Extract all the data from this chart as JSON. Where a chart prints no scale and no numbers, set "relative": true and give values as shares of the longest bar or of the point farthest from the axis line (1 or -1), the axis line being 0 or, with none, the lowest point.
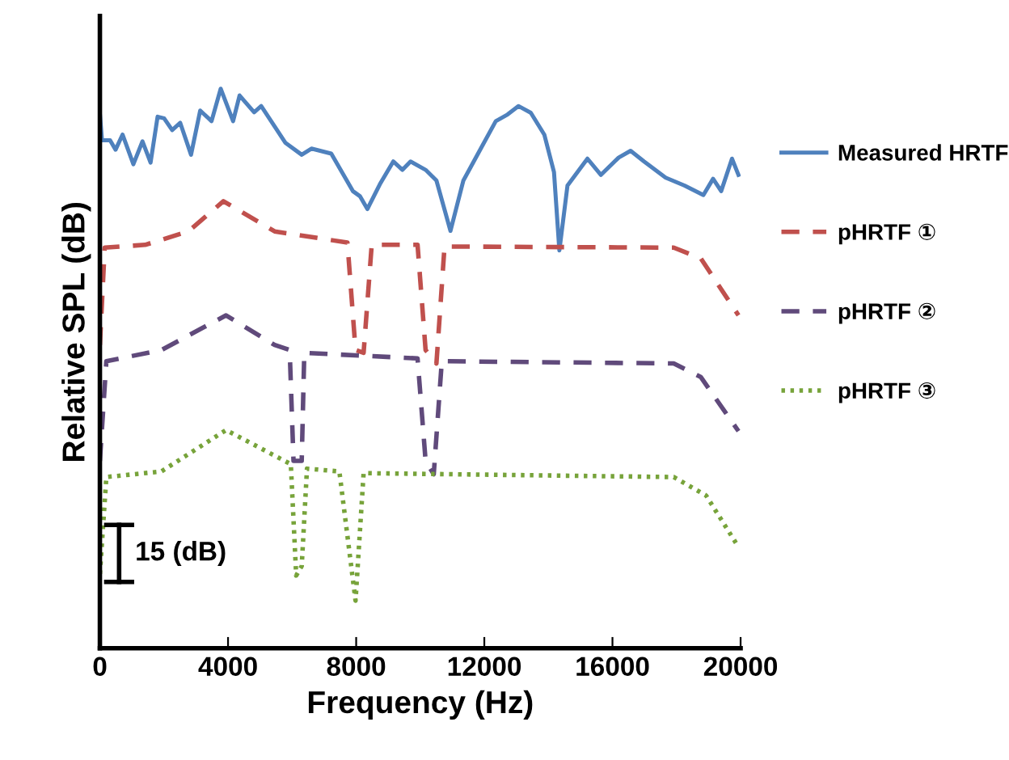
{
  "chart_data": {
    "type": "line",
    "relative": true,
    "xlabel": "Frequency (Hz)",
    "ylabel": "Relative SPL (dB)",
    "xlim": [
      0,
      20000
    ],
    "xticks": [
      0,
      4000,
      8000,
      12000,
      16000,
      20000
    ],
    "tick_labels": "x",
    "grid": false,
    "legend": "right",
    "marker": "none",
    "annotations": [
      "15 (dB)"
    ],
    "series": [
      {
        "name": "Measured HRTF",
        "color": "#4f81bd",
        "line_style": "solid",
        "x": [
          0,
          66,
          318,
          490,
          707,
          1045,
          1330,
          1582,
          1801,
          2005,
          2256,
          2508,
          2845,
          3131,
          3485,
          3771,
          4158,
          4360,
          4815,
          5035,
          5795,
          6300,
          6603,
          7222,
          7896,
          8116,
          8350,
          8737,
          9158,
          9444,
          9697,
          10167,
          10505,
          10943,
          11347,
          11852,
          12357,
          12727,
          13064,
          13451,
          13872,
          14175,
          14343,
          14596,
          15219,
          15640,
          16195,
          16566,
          16987,
          17660,
          18249,
          18838,
          19141,
          19394,
          19731,
          19933
        ],
        "values": [
          0.955,
          0.908,
          0.908,
          0.891,
          0.918,
          0.865,
          0.906,
          0.868,
          0.95,
          0.947,
          0.926,
          0.939,
          0.882,
          0.961,
          0.942,
          1.0,
          0.942,
          0.988,
          0.958,
          0.969,
          0.903,
          0.882,
          0.893,
          0.884,
          0.817,
          0.808,
          0.785,
          0.829,
          0.87,
          0.855,
          0.87,
          0.855,
          0.836,
          0.746,
          0.836,
          0.889,
          0.942,
          0.954,
          0.969,
          0.957,
          0.918,
          0.851,
          0.711,
          0.827,
          0.875,
          0.846,
          0.877,
          0.889,
          0.87,
          0.841,
          0.827,
          0.81,
          0.839,
          0.817,
          0.875,
          0.846
        ]
      },
      {
        "name": "pHRTF ①",
        "color": "#c0504d",
        "line_style": "dashed",
        "x": [
          0,
          150,
          1414,
          2763,
          3855,
          5455,
          7727,
          7980,
          8232,
          8485,
          9916,
          10167,
          10505,
          10758,
          17912,
          18754,
          19933
        ],
        "values": [
          0.542,
          0.716,
          0.721,
          0.745,
          0.799,
          0.745,
          0.725,
          0.533,
          0.528,
          0.721,
          0.721,
          0.533,
          0.509,
          0.718,
          0.716,
          0.697,
          0.595
        ]
      },
      {
        "name": "pHRTF ②",
        "color": "#604a7b",
        "line_style": "dashed",
        "x": [
          0,
          202,
          1919,
          3939,
          5455,
          5924,
          6044,
          6300,
          6380,
          9916,
          10167,
          10421,
          10673,
          17912,
          18754,
          19933
        ],
        "values": [
          0.335,
          0.513,
          0.533,
          0.595,
          0.542,
          0.533,
          0.335,
          0.335,
          0.528,
          0.518,
          0.335,
          0.311,
          0.513,
          0.509,
          0.485,
          0.388
        ]
      },
      {
        "name": "pHRTF ③",
        "color": "#77a33a",
        "line_style": "dotted",
        "x": [
          0,
          202,
          1919,
          3939,
          5960,
          6128,
          6300,
          6465,
          7475,
          7980,
          8232,
          17912,
          18923,
          19933
        ],
        "values": [
          0.133,
          0.306,
          0.316,
          0.39,
          0.329,
          0.13,
          0.147,
          0.321,
          0.316,
          0.085,
          0.313,
          0.306,
          0.273,
          0.181
        ]
      }
    ]
  }
}
